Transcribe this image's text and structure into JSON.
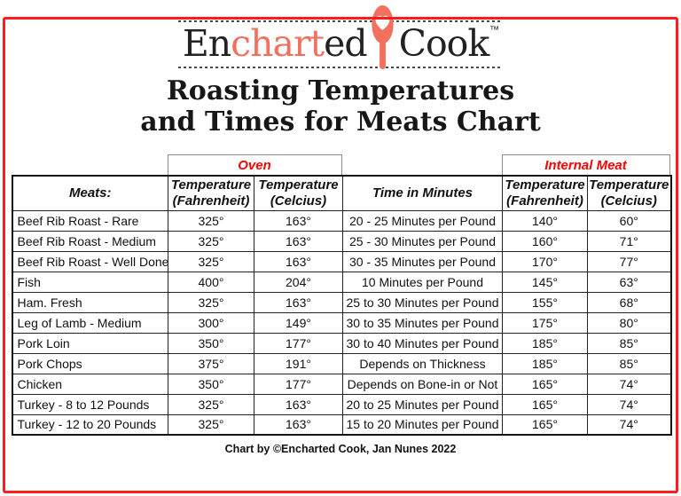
{
  "colors": {
    "coral": "#f3705e",
    "accent_red": "#fe0000",
    "frame_red": "#ff1c1c"
  },
  "logo": {
    "brand_prefix": "En",
    "brand_highlight": "chart",
    "brand_mid": "ed",
    "brand_suffix": "Cook",
    "trademark": "™",
    "spoon_icon": "spoon-with-heart"
  },
  "title": {
    "line1": "Roasting Temperatures",
    "line2": "and Times for Meats Chart"
  },
  "table": {
    "group_headers": {
      "oven": "Oven",
      "internal": "Internal Meat"
    },
    "columns": [
      {
        "line1": "Meats:",
        "line2": ""
      },
      {
        "line1": "Temperature",
        "line2": "(Fahrenheit)"
      },
      {
        "line1": "Temperature",
        "line2": "(Celcius)"
      },
      {
        "line1": "Time in Minutes",
        "line2": ""
      },
      {
        "line1": "Temperature",
        "line2": "(Fahrenheit)"
      },
      {
        "line1": "Temperature",
        "line2": "(Celcius)"
      }
    ],
    "rows": [
      [
        "Beef Rib Roast - Rare",
        "325°",
        "163°",
        "20 - 25 Minutes per Pound",
        "140°",
        "60°"
      ],
      [
        "Beef Rib Roast - Medium",
        "325°",
        "163°",
        "25 - 30 Minutes per Pound",
        "160°",
        "71°"
      ],
      [
        "Beef Rib Roast - Well Done",
        "325°",
        "163°",
        "30 - 35 Minutes per Pound",
        "170°",
        "77°"
      ],
      [
        "Fish",
        "400°",
        "204°",
        "10 Minutes per Pound",
        "145°",
        "63°"
      ],
      [
        "Ham. Fresh",
        "325°",
        "163°",
        "25 to 30 Minutes per Pound",
        "155°",
        "68°"
      ],
      [
        "Leg of Lamb - Medium",
        "300°",
        "149°",
        "30 to 35 Minutes per Pound",
        "175°",
        "80°"
      ],
      [
        "Pork Loin",
        "350°",
        "177°",
        "30 to 40 Minutes per Pound",
        "185°",
        "85°"
      ],
      [
        "Pork Chops",
        "375°",
        "191°",
        "Depends on Thickness",
        "185°",
        "85°"
      ],
      [
        "Chicken",
        "350°",
        "177°",
        "Depends on Bone-in or Not",
        "165°",
        "74°"
      ],
      [
        "Turkey - 8 to 12 Pounds",
        "325°",
        "163°",
        "20 to 25 Minutes per Pound",
        "165°",
        "74°"
      ],
      [
        "Turkey - 12 to 20 Pounds",
        "325°",
        "163°",
        "15 to 20 Minutes per Pound",
        "165°",
        "74°"
      ]
    ]
  },
  "footer": {
    "credit": "Chart by ©Encharted Cook, Jan Nunes 2022"
  }
}
